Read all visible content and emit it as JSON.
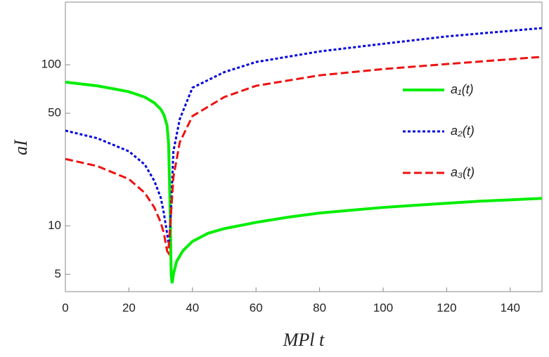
{
  "chart_data": {
    "type": "line",
    "x_label": "MPl t",
    "y_label": "aI",
    "xlim": [
      0,
      150
    ],
    "xticks": [
      0,
      20,
      40,
      60,
      80,
      100,
      120,
      140
    ],
    "ylim": [
      3.9,
      245
    ],
    "yticks": [
      5,
      10,
      50,
      100
    ],
    "log_y": true,
    "grid": false,
    "legend": "right",
    "series": [
      {
        "name": "a₁(t)",
        "color": "#00ee00",
        "dash": "solid",
        "x": [
          0,
          5,
          10,
          15,
          20,
          25,
          28,
          30,
          31,
          32,
          32.5,
          33,
          33.3,
          33.6,
          34,
          35,
          37,
          40,
          45,
          50,
          60,
          70,
          80,
          90,
          100,
          110,
          120,
          130,
          140,
          150
        ],
        "values": [
          78,
          76,
          74,
          71,
          68,
          63,
          58,
          53,
          49,
          42,
          32,
          12,
          5,
          4.4,
          5,
          6,
          7,
          8,
          9,
          9.6,
          10.5,
          11.3,
          12,
          12.5,
          13,
          13.4,
          13.8,
          14.2,
          14.5,
          14.8
        ]
      },
      {
        "name": "a₂(t)",
        "color": "#0000dd",
        "dash": "dotted",
        "x": [
          0,
          10,
          20,
          25,
          28,
          30,
          31,
          32,
          32.6,
          33.2,
          34,
          36,
          40,
          50,
          60,
          80,
          100,
          120,
          150
        ],
        "values": [
          39,
          35,
          29,
          24,
          19,
          15,
          12,
          9,
          7.5,
          12,
          29,
          46,
          72,
          90,
          104,
          121,
          135,
          150,
          169
        ]
      },
      {
        "name": "a₃(t)",
        "color": "#ee1111",
        "dash": "dashed",
        "x": [
          0,
          10,
          20,
          25,
          28,
          30,
          31,
          32,
          32.4,
          33,
          34,
          36,
          40,
          50,
          60,
          80,
          100,
          120,
          150
        ],
        "values": [
          26,
          23.5,
          19.5,
          16,
          13,
          10.5,
          9,
          7,
          6.8,
          10,
          20,
          33,
          48,
          63,
          74,
          86,
          94,
          101,
          112
        ]
      }
    ]
  }
}
